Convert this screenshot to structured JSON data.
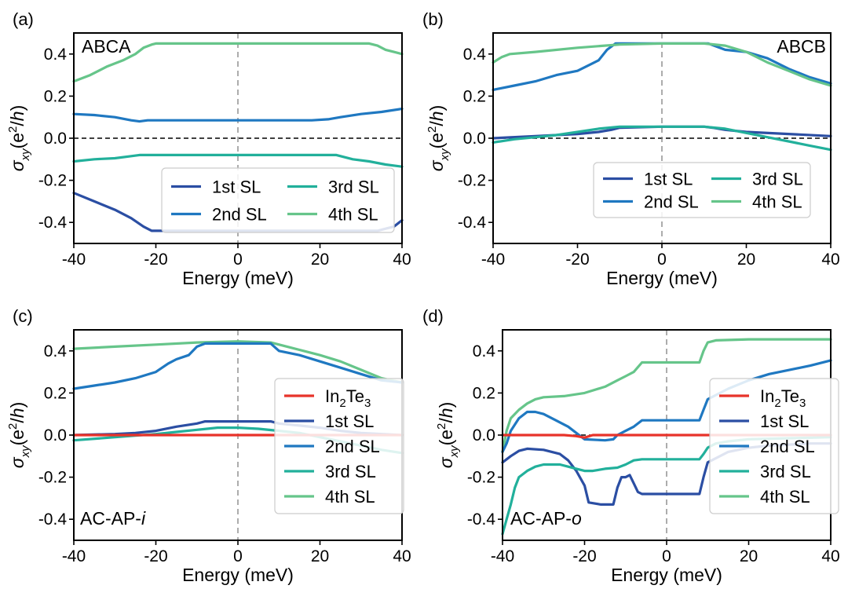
{
  "colors": {
    "In2Te3": "#e8332a",
    "SL1": "#2b4ea3",
    "SL2": "#1f78c1",
    "SL3": "#22b09b",
    "SL4": "#66c58a"
  },
  "chart_data": [
    {
      "id": "a",
      "type": "line",
      "panel_label": "(a)",
      "annotation": "ABCA",
      "xlabel": "Energy (meV)",
      "ylabel": "σxy(e²/h)",
      "xlim": [
        -40,
        40
      ],
      "ylim": [
        -0.5,
        0.5
      ],
      "xticks": [
        -40,
        -20,
        0,
        20,
        40
      ],
      "xtick_labels": [
        "-40",
        "-20",
        "0",
        "20",
        "40"
      ],
      "yticks": [
        -0.4,
        -0.2,
        0.0,
        0.2,
        0.4
      ],
      "ytick_labels": [
        "-0.4",
        "-0.2",
        "0.0",
        "0.2",
        "0.4"
      ],
      "legend": {
        "placement": "lower-right",
        "columns": 2,
        "entries": [
          {
            "key": "SL1",
            "label": "1st SL"
          },
          {
            "key": "SL3",
            "label": "3rd SL"
          },
          {
            "key": "SL2",
            "label": "2nd SL"
          },
          {
            "key": "SL4",
            "label": "4th SL"
          }
        ]
      },
      "series": [
        {
          "key": "SL1",
          "name": "1st SL",
          "x": [
            -40,
            -35,
            -30,
            -26,
            -23,
            -21,
            -15,
            0,
            15,
            30,
            34,
            36,
            38,
            40
          ],
          "y": [
            -0.26,
            -0.3,
            -0.34,
            -0.38,
            -0.42,
            -0.44,
            -0.44,
            -0.44,
            -0.44,
            -0.44,
            -0.44,
            -0.43,
            -0.42,
            -0.39
          ]
        },
        {
          "key": "SL2",
          "name": "2nd SL",
          "x": [
            -40,
            -35,
            -30,
            -26,
            -24,
            -22,
            -18,
            0,
            18,
            22,
            25,
            30,
            35,
            40
          ],
          "y": [
            0.115,
            0.11,
            0.1,
            0.085,
            0.08,
            0.085,
            0.085,
            0.085,
            0.085,
            0.09,
            0.1,
            0.115,
            0.125,
            0.14
          ]
        },
        {
          "key": "SL3",
          "name": "3rd SL",
          "x": [
            -40,
            -35,
            -30,
            -26,
            -24,
            -22,
            -15,
            0,
            15,
            24,
            28,
            32,
            36,
            40
          ],
          "y": [
            -0.11,
            -0.1,
            -0.095,
            -0.085,
            -0.08,
            -0.08,
            -0.08,
            -0.08,
            -0.08,
            -0.08,
            -0.1,
            -0.11,
            -0.125,
            -0.135
          ]
        },
        {
          "key": "SL4",
          "name": "4th SL",
          "x": [
            -40,
            -36,
            -32,
            -28,
            -25,
            -23,
            -21,
            -20,
            0,
            32,
            34,
            36,
            38,
            40
          ],
          "y": [
            0.27,
            0.3,
            0.34,
            0.37,
            0.4,
            0.43,
            0.445,
            0.45,
            0.45,
            0.45,
            0.44,
            0.42,
            0.41,
            0.4
          ]
        }
      ]
    },
    {
      "id": "b",
      "type": "line",
      "panel_label": "(b)",
      "annotation": "ABCB",
      "xlabel": "Energy (meV)",
      "ylabel": "σxy(e²/h)",
      "xlim": [
        -40,
        40
      ],
      "ylim": [
        -0.5,
        0.5
      ],
      "xticks": [
        -40,
        -20,
        0,
        20,
        40
      ],
      "xtick_labels": [
        "-40",
        "-20",
        "0",
        "20",
        "40"
      ],
      "yticks": [
        -0.4,
        -0.2,
        0.0,
        0.2,
        0.4
      ],
      "ytick_labels": [
        "-0.4",
        "-0.2",
        "0.0",
        "0.2",
        "0.4"
      ],
      "legend": {
        "placement": "lower-right",
        "columns": 2,
        "entries": [
          {
            "key": "SL1",
            "label": "1st SL"
          },
          {
            "key": "SL3",
            "label": "3rd SL"
          },
          {
            "key": "SL2",
            "label": "2nd SL"
          },
          {
            "key": "SL4",
            "label": "4th SL"
          }
        ]
      },
      "series": [
        {
          "key": "SL1",
          "name": "1st SL",
          "x": [
            -40,
            -30,
            -20,
            -15,
            -12,
            -10,
            0,
            10,
            12,
            15,
            20,
            30,
            40
          ],
          "y": [
            0.0,
            0.01,
            0.02,
            0.03,
            0.04,
            0.05,
            0.055,
            0.055,
            0.05,
            0.04,
            0.03,
            0.02,
            0.01
          ]
        },
        {
          "key": "SL2",
          "name": "2nd SL",
          "x": [
            -40,
            -35,
            -30,
            -25,
            -20,
            -17,
            -15,
            -13,
            -11,
            0,
            11,
            15,
            20,
            25,
            30,
            35,
            40
          ],
          "y": [
            0.23,
            0.25,
            0.27,
            0.3,
            0.32,
            0.35,
            0.37,
            0.42,
            0.45,
            0.45,
            0.45,
            0.42,
            0.41,
            0.38,
            0.33,
            0.29,
            0.26
          ]
        },
        {
          "key": "SL3",
          "name": "3rd SL",
          "x": [
            -40,
            -35,
            -30,
            -25,
            -20,
            -15,
            -10,
            0,
            10,
            15,
            20,
            25,
            30,
            35,
            40
          ],
          "y": [
            -0.02,
            -0.005,
            0.005,
            0.015,
            0.03,
            0.045,
            0.055,
            0.055,
            0.055,
            0.045,
            0.025,
            0.005,
            -0.015,
            -0.035,
            -0.055
          ]
        },
        {
          "key": "SL4",
          "name": "4th SL",
          "x": [
            -40,
            -38,
            -36,
            -30,
            -20,
            -10,
            0,
            10,
            15,
            20,
            25,
            30,
            35,
            40
          ],
          "y": [
            0.36,
            0.385,
            0.4,
            0.41,
            0.43,
            0.445,
            0.45,
            0.45,
            0.44,
            0.41,
            0.36,
            0.32,
            0.28,
            0.25
          ]
        }
      ]
    },
    {
      "id": "c",
      "type": "line",
      "panel_label": "(c)",
      "annotation": "AC-AP-",
      "annotation_italic": "i",
      "xlabel": "Energy (meV)",
      "ylabel": "σxy(e²/h)",
      "xlim": [
        -40,
        40
      ],
      "ylim": [
        -0.5,
        0.5
      ],
      "xticks": [
        -40,
        -20,
        0,
        20,
        40
      ],
      "xtick_labels": [
        "-40",
        "-20",
        "0",
        "20",
        "40"
      ],
      "yticks": [
        -0.4,
        -0.2,
        0.0,
        0.2,
        0.4
      ],
      "ytick_labels": [
        "-0.4",
        "-0.2",
        "0.0",
        "0.2",
        "0.4"
      ],
      "legend": {
        "placement": "right",
        "columns": 1,
        "entries": [
          {
            "key": "In2Te3",
            "label": "In",
            "sub1": "2",
            "mid": "Te",
            "sub2": "3"
          },
          {
            "key": "SL1",
            "label": "1st SL"
          },
          {
            "key": "SL2",
            "label": "2nd SL"
          },
          {
            "key": "SL3",
            "label": "3rd SL"
          },
          {
            "key": "SL4",
            "label": "4th SL"
          }
        ]
      },
      "series": [
        {
          "key": "SL4",
          "name": "4th SL",
          "x": [
            -40,
            -30,
            -20,
            -10,
            0,
            8,
            12,
            16,
            20,
            25,
            30,
            35,
            40
          ],
          "y": [
            0.41,
            0.42,
            0.43,
            0.44,
            0.445,
            0.44,
            0.42,
            0.4,
            0.38,
            0.35,
            0.31,
            0.27,
            0.25
          ]
        },
        {
          "key": "SL2",
          "name": "2nd SL",
          "x": [
            -40,
            -35,
            -30,
            -25,
            -20,
            -17,
            -15,
            -12,
            -10,
            -8,
            0,
            8,
            10,
            15,
            20,
            25,
            30,
            35,
            40
          ],
          "y": [
            0.22,
            0.235,
            0.25,
            0.27,
            0.3,
            0.34,
            0.36,
            0.38,
            0.42,
            0.435,
            0.435,
            0.435,
            0.4,
            0.38,
            0.35,
            0.32,
            0.29,
            0.26,
            0.25
          ]
        },
        {
          "key": "SL1",
          "name": "1st SL",
          "x": [
            -40,
            -30,
            -25,
            -20,
            -15,
            -10,
            -8,
            0,
            8,
            10,
            15,
            20,
            25,
            30,
            40
          ],
          "y": [
            0.0,
            0.005,
            0.01,
            0.02,
            0.04,
            0.055,
            0.065,
            0.065,
            0.065,
            0.055,
            0.045,
            0.035,
            0.02,
            0.01,
            0.0
          ]
        },
        {
          "key": "SL3",
          "name": "3rd SL",
          "x": [
            -40,
            -30,
            -20,
            -15,
            -10,
            -5,
            0,
            5,
            10,
            15,
            20,
            25,
            30,
            35,
            40
          ],
          "y": [
            -0.025,
            -0.01,
            0.005,
            0.015,
            0.025,
            0.035,
            0.035,
            0.03,
            0.02,
            0.01,
            -0.01,
            -0.03,
            -0.05,
            -0.07,
            -0.085
          ]
        },
        {
          "key": "In2Te3",
          "name": "In2Te3",
          "x": [
            -40,
            0,
            40
          ],
          "y": [
            0.0,
            0.0,
            0.0
          ]
        }
      ]
    },
    {
      "id": "d",
      "type": "line",
      "panel_label": "(d)",
      "annotation": "AC-AP-",
      "annotation_italic": "o",
      "xlabel": "Energy (meV)",
      "ylabel": "σxy(e²/h)",
      "xlim": [
        -40,
        40
      ],
      "ylim": [
        -0.5,
        0.5
      ],
      "xticks": [
        -40,
        -20,
        0,
        20,
        40
      ],
      "xtick_labels": [
        "-40",
        "-20",
        "0",
        "20",
        "40"
      ],
      "yticks": [
        -0.4,
        -0.2,
        0.0,
        0.2,
        0.4
      ],
      "ytick_labels": [
        "-0.4",
        "-0.2",
        "0.0",
        "0.2",
        "0.4"
      ],
      "legend": {
        "placement": "right",
        "columns": 1,
        "entries": [
          {
            "key": "In2Te3",
            "label": "In",
            "sub1": "2",
            "mid": "Te",
            "sub2": "3"
          },
          {
            "key": "SL1",
            "label": "1st SL"
          },
          {
            "key": "SL2",
            "label": "2nd SL"
          },
          {
            "key": "SL3",
            "label": "3rd SL"
          },
          {
            "key": "SL4",
            "label": "4th SL"
          }
        ]
      },
      "series": [
        {
          "key": "SL4",
          "name": "4th SL",
          "x": [
            -40,
            -39,
            -38,
            -36,
            -34,
            -32,
            -30,
            -25,
            -20,
            -15,
            -12,
            -10,
            -8,
            -6,
            0,
            8,
            9,
            10,
            12,
            20,
            30,
            40
          ],
          "y": [
            -0.08,
            0.02,
            0.08,
            0.12,
            0.15,
            0.17,
            0.18,
            0.185,
            0.2,
            0.23,
            0.26,
            0.28,
            0.3,
            0.345,
            0.345,
            0.345,
            0.4,
            0.44,
            0.45,
            0.455,
            0.455,
            0.455
          ]
        },
        {
          "key": "SL2",
          "name": "2nd SL",
          "x": [
            -40,
            -39,
            -38,
            -36,
            -34,
            -32,
            -30,
            -27,
            -24,
            -22,
            -20,
            -15,
            -13,
            -12,
            -10,
            -8,
            -6,
            0,
            8,
            9,
            10,
            15,
            20,
            25,
            30,
            35,
            40
          ],
          "y": [
            -0.08,
            -0.04,
            0.02,
            0.08,
            0.11,
            0.11,
            0.1,
            0.07,
            0.04,
            0.01,
            -0.02,
            -0.025,
            -0.02,
            0.0,
            0.02,
            0.04,
            0.07,
            0.07,
            0.07,
            0.12,
            0.17,
            0.22,
            0.26,
            0.29,
            0.31,
            0.33,
            0.355
          ]
        },
        {
          "key": "SL1",
          "name": "1st SL",
          "x": [
            -40,
            -38,
            -36,
            -34,
            -30,
            -26,
            -24,
            -22,
            -20,
            -19,
            -16,
            -13,
            -12,
            -11,
            -10,
            -9,
            -8,
            -7,
            -6,
            0,
            8,
            9,
            10,
            15,
            20,
            25,
            30,
            35,
            40
          ],
          "y": [
            -0.13,
            -0.1,
            -0.075,
            -0.065,
            -0.07,
            -0.09,
            -0.12,
            -0.17,
            -0.24,
            -0.32,
            -0.33,
            -0.33,
            -0.25,
            -0.2,
            -0.2,
            -0.19,
            -0.23,
            -0.27,
            -0.28,
            -0.28,
            -0.28,
            -0.2,
            -0.13,
            -0.08,
            -0.06,
            -0.05,
            -0.045,
            -0.04,
            -0.04
          ]
        },
        {
          "key": "SL3",
          "name": "3rd SL",
          "x": [
            -40,
            -39,
            -38,
            -37,
            -36,
            -34,
            -32,
            -30,
            -28,
            -26,
            -24,
            -22,
            -20,
            -18,
            -15,
            -12,
            -10,
            -8,
            -6,
            0,
            8,
            9,
            10,
            12,
            15,
            20,
            30,
            40
          ],
          "y": [
            -0.47,
            -0.4,
            -0.33,
            -0.25,
            -0.2,
            -0.17,
            -0.15,
            -0.14,
            -0.14,
            -0.14,
            -0.15,
            -0.16,
            -0.17,
            -0.17,
            -0.16,
            -0.155,
            -0.14,
            -0.12,
            -0.115,
            -0.115,
            -0.115,
            -0.09,
            -0.06,
            -0.04,
            -0.03,
            -0.02,
            -0.015,
            -0.01
          ]
        },
        {
          "key": "In2Te3",
          "name": "In2Te3",
          "x": [
            -40,
            -25,
            -22,
            -20,
            -18,
            0,
            40
          ],
          "y": [
            0.0,
            0.0,
            -0.005,
            -0.012,
            0.0,
            0.0,
            0.0
          ]
        }
      ]
    }
  ]
}
